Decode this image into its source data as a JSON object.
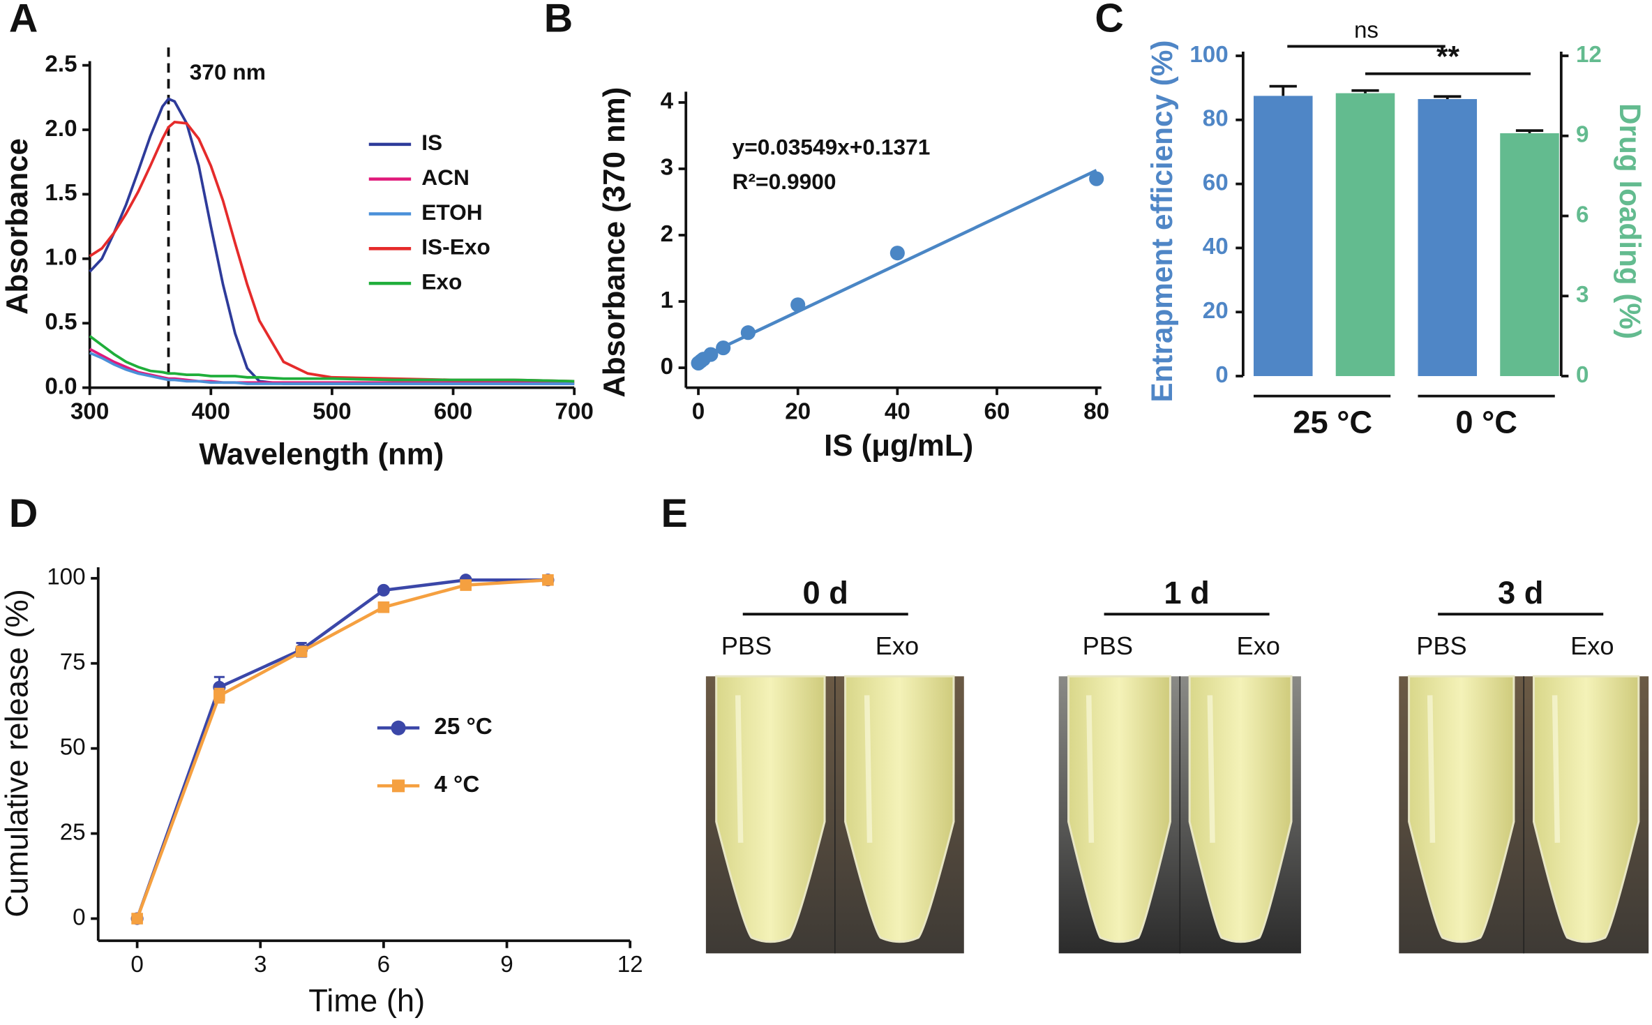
{
  "chart_data": [
    {
      "type": "line",
      "xlabel": "Wavelength (nm)",
      "ylabel": "Absorbance",
      "x": [
        300,
        310,
        320,
        330,
        340,
        350,
        360,
        365,
        370,
        380,
        390,
        400,
        410,
        420,
        430,
        440,
        460,
        480,
        500,
        550,
        600,
        650,
        700
      ],
      "series": [
        {
          "name": "IS",
          "color": "#2e3b9a",
          "values": [
            0.9,
            1.0,
            1.2,
            1.42,
            1.68,
            1.95,
            2.18,
            2.24,
            2.22,
            2.05,
            1.72,
            1.25,
            0.8,
            0.42,
            0.15,
            0.05,
            0.03,
            0.03,
            0.03,
            0.03,
            0.03,
            0.03,
            0.03
          ]
        },
        {
          "name": "ACN",
          "color": "#e0197a",
          "values": [
            0.3,
            0.25,
            0.2,
            0.16,
            0.12,
            0.1,
            0.08,
            0.07,
            0.07,
            0.06,
            0.05,
            0.05,
            0.04,
            0.04,
            0.04,
            0.04,
            0.04,
            0.04,
            0.04,
            0.04,
            0.04,
            0.04,
            0.04
          ]
        },
        {
          "name": "ETOH",
          "color": "#4a90d9",
          "values": [
            0.27,
            0.23,
            0.18,
            0.14,
            0.11,
            0.09,
            0.07,
            0.06,
            0.06,
            0.05,
            0.05,
            0.04,
            0.04,
            0.04,
            0.03,
            0.03,
            0.03,
            0.03,
            0.03,
            0.03,
            0.03,
            0.03,
            0.03
          ]
        },
        {
          "name": "IS-Exo",
          "color": "#e52b2b",
          "values": [
            1.02,
            1.08,
            1.2,
            1.35,
            1.52,
            1.72,
            1.93,
            2.02,
            2.06,
            2.05,
            1.93,
            1.72,
            1.45,
            1.12,
            0.8,
            0.52,
            0.2,
            0.11,
            0.08,
            0.07,
            0.06,
            0.06,
            0.05
          ]
        },
        {
          "name": "Exo",
          "color": "#1fae3a",
          "values": [
            0.4,
            0.33,
            0.26,
            0.2,
            0.16,
            0.13,
            0.12,
            0.11,
            0.11,
            0.1,
            0.1,
            0.09,
            0.09,
            0.09,
            0.08,
            0.08,
            0.07,
            0.07,
            0.07,
            0.06,
            0.06,
            0.06,
            0.05
          ]
        }
      ],
      "xlim": [
        300,
        700
      ],
      "xticks": [
        300,
        400,
        500,
        600,
        700
      ],
      "ylim": [
        0,
        2.5
      ],
      "yticks": [
        {
          "value": 0,
          "label": "0.0"
        },
        0.5,
        {
          "value": 1,
          "label": "1.0"
        },
        1.5,
        {
          "value": 2,
          "label": "2.0"
        },
        2.5
      ],
      "vline": 365,
      "annotations": [
        "370 nm"
      ],
      "legend": "upper right"
    },
    {
      "type": "scatter",
      "xlabel": "IS (μg/mL)",
      "ylabel": "Absorbance (370 nm)",
      "x": [
        0,
        0.5,
        1,
        2.5,
        5,
        10,
        20,
        40,
        80
      ],
      "values": [
        0.07,
        0.1,
        0.13,
        0.2,
        0.3,
        0.53,
        0.95,
        1.73,
        2.85
      ],
      "color": "#4a86c5",
      "fit": {
        "slope": 0.03549,
        "intercept": 0.1371
      },
      "annotations": [
        "y=0.03549x+0.1371",
        "R²=0.9900"
      ],
      "xlim": [
        -2.5,
        81
      ],
      "xticks": [
        0,
        20,
        40,
        60,
        80
      ],
      "ylim": [
        -0.3,
        4.1
      ],
      "yticks": [
        0,
        1,
        2,
        3,
        4
      ]
    },
    {
      "type": "bar",
      "categories": [
        "25 °C",
        "0 °C"
      ],
      "series": [
        {
          "name": "Entrapment efficiency (%)",
          "color": "#4f86c6",
          "values": [
            87.5,
            86.5
          ],
          "errors": [
            3,
            0.8
          ]
        },
        {
          "name": "Drug loading  (%)",
          "color": "#63bb8f",
          "axis": "y2",
          "values": [
            10.6,
            9.1
          ],
          "errors": [
            0.1,
            0.1
          ]
        }
      ],
      "ylim": [
        0,
        100
      ],
      "yticks": [
        0,
        20,
        40,
        60,
        80,
        100
      ],
      "y2lim": [
        0,
        12
      ],
      "y2ticks": [
        0,
        3,
        6,
        9,
        12
      ],
      "annotations": [
        "ns",
        "**"
      ]
    },
    {
      "type": "line",
      "xlabel": "Time (h)",
      "ylabel": "Cumulative release (%)",
      "x": [
        0,
        2,
        4,
        6,
        8,
        10
      ],
      "series": [
        {
          "name": "25 °C",
          "color": "#3b47a8",
          "marker": "circle",
          "values": [
            0,
            68,
            79,
            96.5,
            99.5,
            99.5
          ],
          "errors": [
            0,
            3,
            2,
            0.5,
            0.5,
            0.5
          ]
        },
        {
          "name": "4 °C",
          "color": "#f5a040",
          "marker": "square",
          "values": [
            0,
            65.5,
            78.5,
            91.5,
            98,
            99.5
          ],
          "errors": [
            0,
            2,
            1,
            1,
            1,
            0.5
          ]
        }
      ],
      "xlim": [
        -1,
        12
      ],
      "xticks": [
        0,
        3,
        6,
        9,
        12
      ],
      "ylim": [
        -6.5,
        102
      ],
      "yticks": [
        0,
        25,
        50,
        75,
        100
      ],
      "legend": "center right"
    }
  ],
  "figure": {
    "panel_labels": [
      "A",
      "B",
      "C",
      "D",
      "E"
    ],
    "panel_e": {
      "groups": [
        {
          "label": "0 d",
          "samples": [
            "PBS",
            "Exo"
          ]
        },
        {
          "label": "1 d",
          "samples": [
            "PBS",
            "Exo"
          ]
        },
        {
          "label": "3 d",
          "samples": [
            "PBS",
            "Exo"
          ]
        }
      ]
    }
  }
}
